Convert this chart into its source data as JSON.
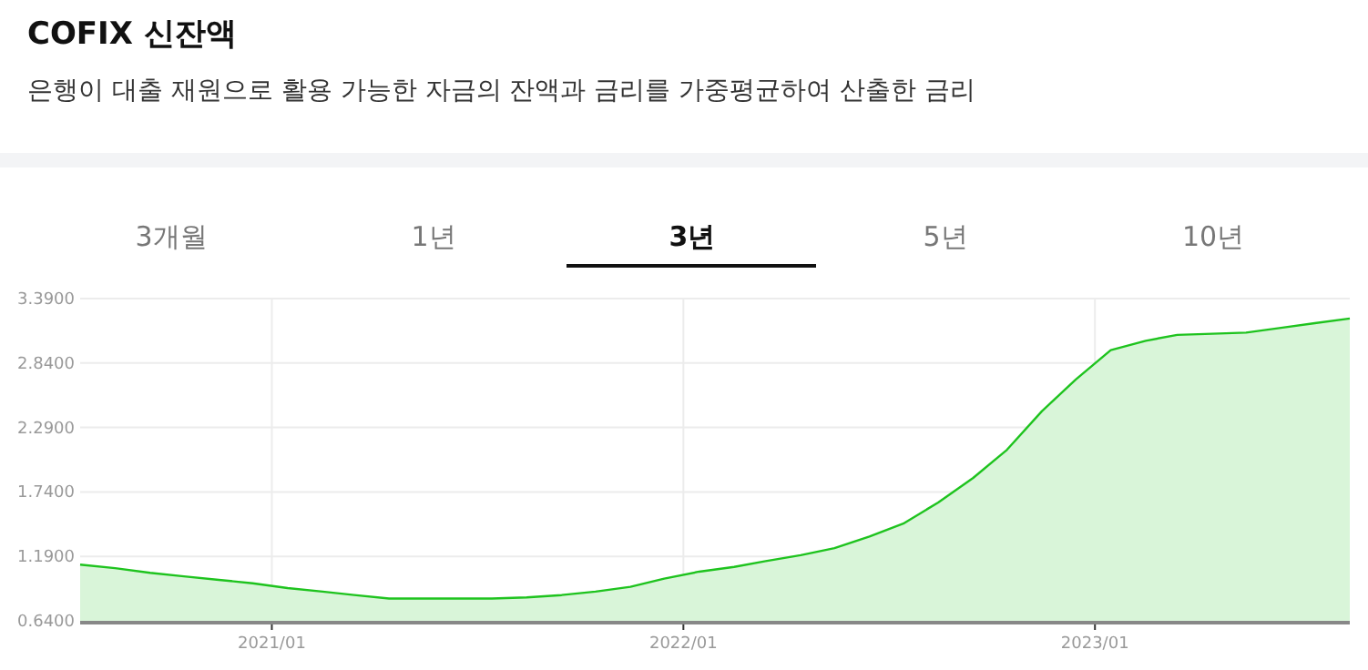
{
  "chart_data": {
    "type": "area",
    "title": "COFIX 신잔액",
    "subtitle": "은행이 대출 재원으로 활용 가능한 자금의 잔액과 금리를 가중평균하여 산출한 금리",
    "annotations": [
      "3개월",
      "1년",
      "3년",
      "5년",
      "10년"
    ],
    "x": [
      "2020-07-15",
      "2020-08-15",
      "2020-09-15",
      "2020-10-15",
      "2020-11-15",
      "2020-12-15",
      "2021-01-15",
      "2021-02-15",
      "2021-03-15",
      "2021-04-15",
      "2021-05-15",
      "2021-06-15",
      "2021-07-15",
      "2021-08-15",
      "2021-09-15",
      "2021-10-15",
      "2021-11-15",
      "2021-12-15",
      "2022-01-15",
      "2022-02-15",
      "2022-03-15",
      "2022-04-15",
      "2022-05-15",
      "2022-06-15",
      "2022-07-15",
      "2022-08-15",
      "2022-09-15",
      "2022-10-15",
      "2022-11-15",
      "2022-12-15",
      "2023-01-15",
      "2023-02-15",
      "2023-03-15",
      "2023-04-15",
      "2023-05-15",
      "2023-06-15",
      "2023-07-15",
      "2023-08-15"
    ],
    "series": [
      {
        "color": "#1ec31e",
        "values": [
          1.12,
          1.09,
          1.05,
          1.02,
          0.99,
          0.96,
          0.92,
          0.89,
          0.86,
          0.83,
          0.83,
          0.83,
          0.83,
          0.84,
          0.86,
          0.89,
          0.93,
          1.0,
          1.06,
          1.1,
          1.15,
          1.2,
          1.26,
          1.36,
          1.47,
          1.65,
          1.86,
          2.1,
          2.43,
          2.7,
          2.95,
          3.03,
          3.08,
          3.09,
          3.1,
          3.14,
          3.18,
          3.22
        ]
      }
    ],
    "xlim": [
      "2020-07-15",
      "2023-08-15"
    ],
    "xticks": [
      {
        "value": "2021-01-01",
        "label": "2021/01"
      },
      {
        "value": "2022-01-01",
        "label": "2022/01"
      },
      {
        "value": "2023-01-01",
        "label": "2023/01"
      }
    ],
    "ylim": [
      0.64,
      3.39
    ],
    "yticks": [
      {
        "value": 0.64,
        "label": "0.6400"
      },
      {
        "value": 1.19,
        "label": "1.1900"
      },
      {
        "value": 1.74,
        "label": "1.7400"
      },
      {
        "value": 2.29,
        "label": "2.2900"
      },
      {
        "value": 2.84,
        "label": "2.8400"
      },
      {
        "value": 3.39,
        "label": "3.3900"
      }
    ],
    "grid": true,
    "marker": "none"
  }
}
